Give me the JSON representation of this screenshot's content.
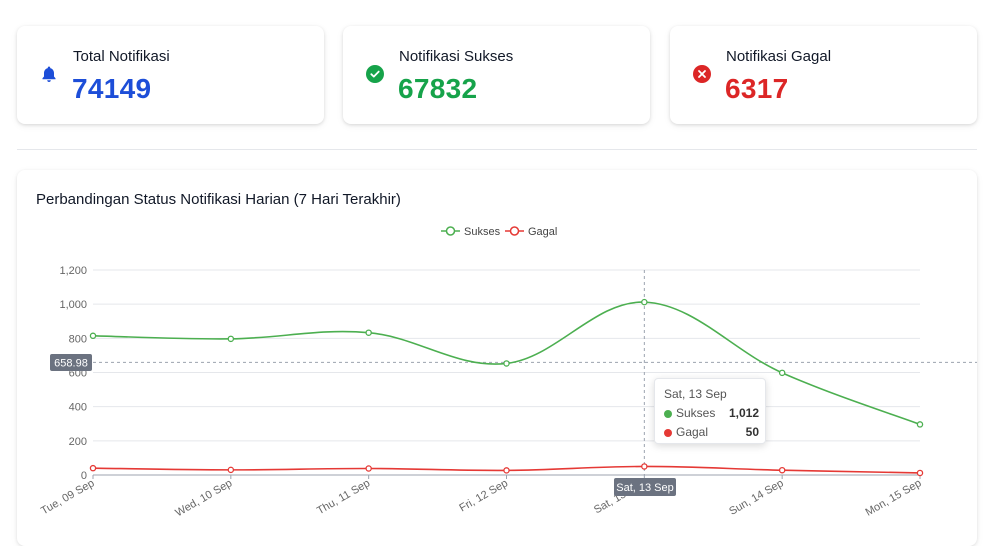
{
  "stats": {
    "total": {
      "label": "Total Notifikasi",
      "value": "74149",
      "color": "#1d4ed8",
      "icon": "bell-icon"
    },
    "sukses": {
      "label": "Notifikasi Sukses",
      "value": "67832",
      "color": "#16a34a",
      "icon": "check-circle-icon"
    },
    "gagal": {
      "label": "Notifikasi Gagal",
      "value": "6317",
      "color": "#dc2626",
      "icon": "x-circle-icon"
    }
  },
  "chart": {
    "title": "Perbandingan Status Notifikasi Harian (7 Hari Terakhir)",
    "crosshair_y_label": "658.98",
    "crosshair_x_label": "Sat, 13 Sep",
    "tooltip": {
      "title": "Sat, 13 Sep",
      "rows": [
        {
          "name": "Sukses",
          "value": "1,012",
          "color": "#4caf50"
        },
        {
          "name": "Gagal",
          "value": "50",
          "color": "#e53935"
        }
      ]
    }
  },
  "chart_data": {
    "type": "line",
    "title": "Perbandingan Status Notifikasi Harian (7 Hari Terakhir)",
    "categories": [
      "Tue, 09 Sep",
      "Wed, 10 Sep",
      "Thu, 11 Sep",
      "Fri, 12 Sep",
      "Sat, 13 Sep",
      "Sun, 14 Sep",
      "Mon, 15 Sep"
    ],
    "series": [
      {
        "name": "Sukses",
        "color": "#4caf50",
        "values": [
          815,
          797,
          833,
          653,
          1012,
          598,
          296
        ]
      },
      {
        "name": "Gagal",
        "color": "#e53935",
        "values": [
          40,
          30,
          38,
          27,
          50,
          28,
          12
        ]
      }
    ],
    "ylim": [
      0,
      1200
    ],
    "yticks": [
      "0",
      "200",
      "400",
      "600",
      "800",
      "1,000",
      "1,200"
    ],
    "grid": true,
    "legend": "top-center"
  }
}
